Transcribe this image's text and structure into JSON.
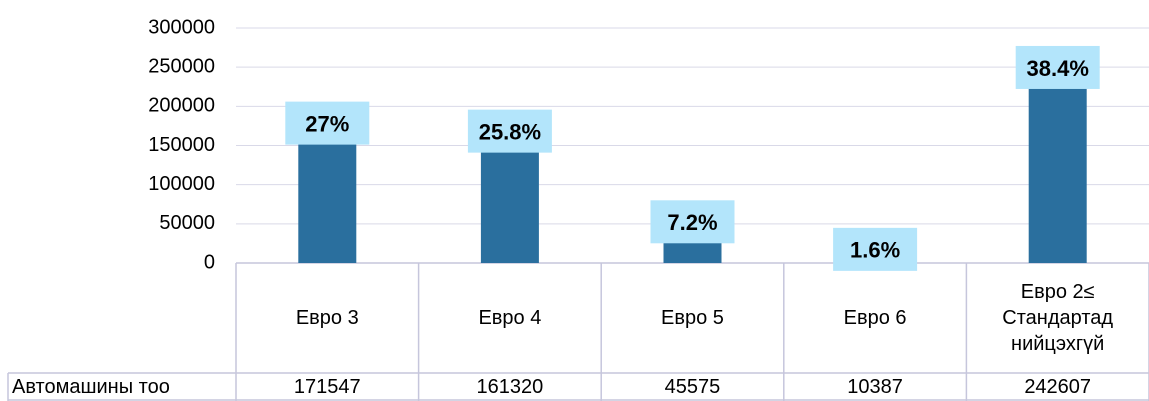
{
  "chart_data": {
    "type": "bar",
    "categories": [
      "Евро 3",
      "Евро 4",
      "Евро 5",
      "Евро 6",
      "Евро 2≤ Стандартад нийцэхгүй"
    ],
    "series": [
      {
        "name": "Автомашины тоо",
        "color": "#2a6f9e",
        "values": [
          171547,
          161320,
          45575,
          10387,
          242607
        ]
      },
      {
        "color": "#b3e5fb",
        "values": [
          27,
          25.8,
          7.2,
          1.6,
          38.4
        ],
        "value_labels": [
          "27%",
          "25.8%",
          "7.2%",
          "1.6%",
          "38.4%"
        ]
      }
    ],
    "ylim": [
      0,
      300000
    ],
    "yticks": [
      0,
      50000,
      100000,
      150000,
      200000,
      250000,
      300000
    ],
    "grid": true
  }
}
